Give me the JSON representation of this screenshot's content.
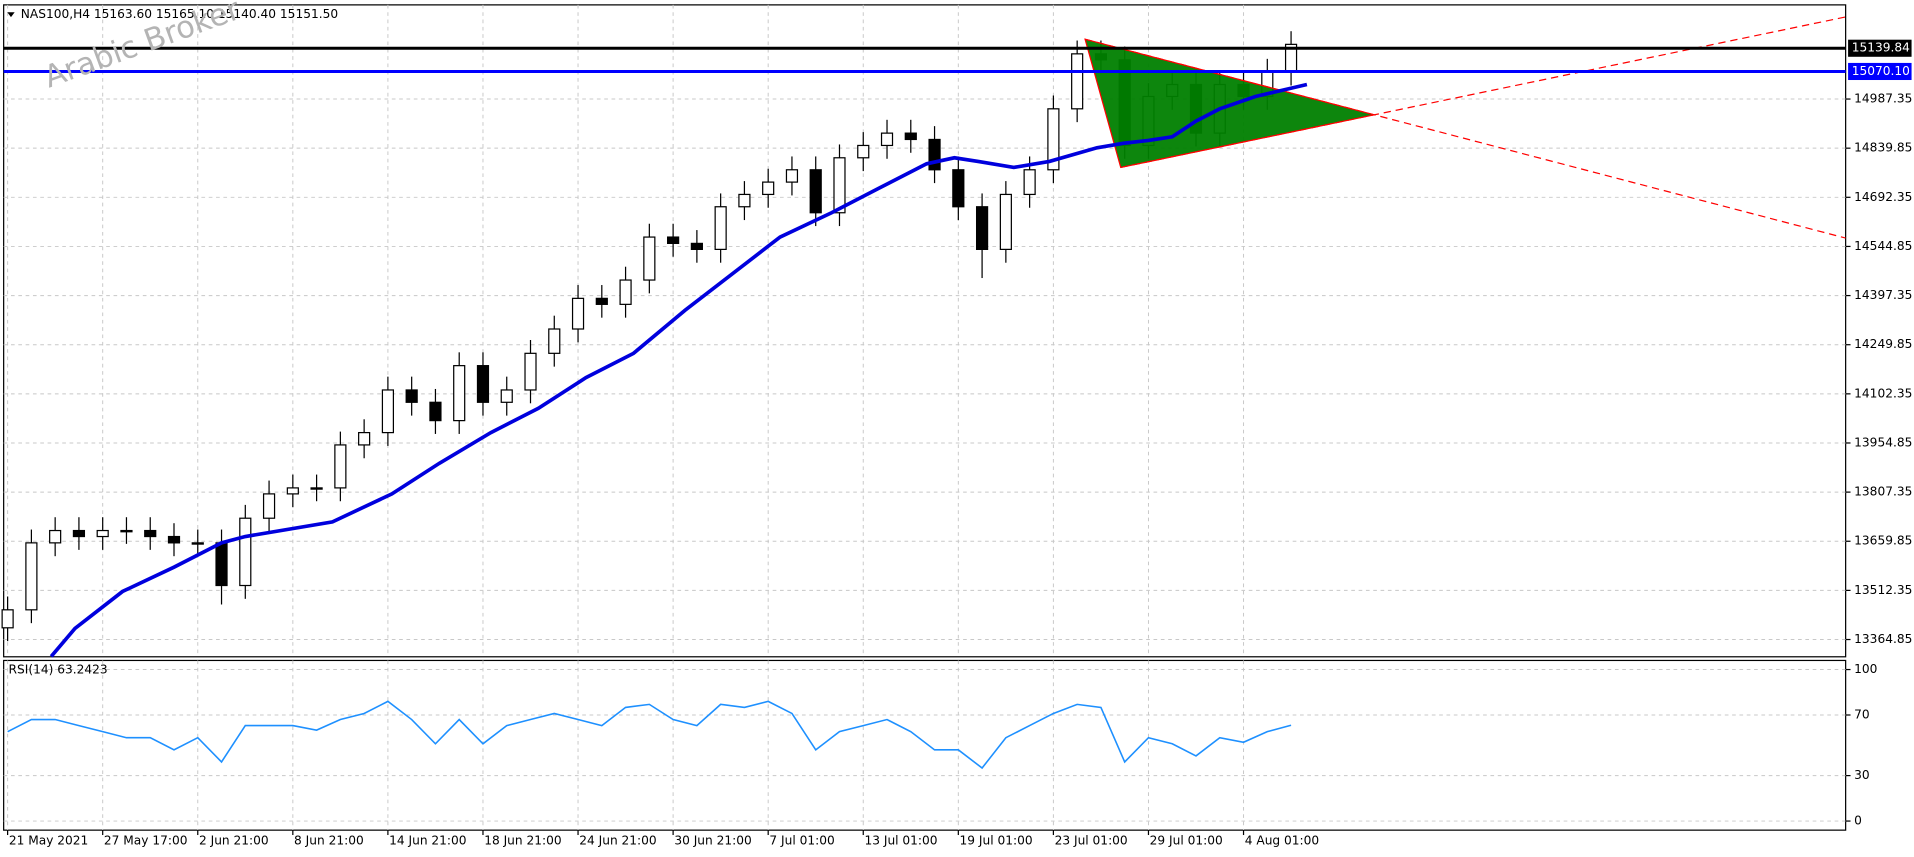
{
  "chart_data": [
    {
      "type": "candlestick",
      "title": "NAS100,H4  15163.60 15165.10 15140.40 15151.50",
      "watermark": "Arabic Broker",
      "x": [
        0,
        6,
        12,
        18,
        24,
        30,
        36,
        42,
        48,
        54,
        60,
        66,
        72,
        78,
        84,
        90,
        96,
        102,
        108,
        114,
        120,
        126,
        132,
        138,
        144,
        150,
        156,
        162,
        168,
        174,
        180,
        186,
        192,
        198,
        204,
        210,
        216,
        222,
        228,
        234,
        240,
        246,
        252,
        258,
        264,
        270,
        276,
        282,
        288,
        294,
        300,
        306,
        312,
        318,
        324
      ],
      "open": [
        13400,
        13454,
        13655,
        13692,
        13674,
        13692,
        13692,
        13674,
        13655,
        13655,
        13527,
        13729,
        13802,
        13820,
        13820,
        13949,
        13986,
        14114,
        14077,
        14022,
        14187,
        14077,
        14114,
        14224,
        14297,
        14389,
        14371,
        14444,
        14573,
        14554,
        14536,
        14664,
        14701,
        14738,
        14775,
        14646,
        14811,
        14848,
        14885,
        14866,
        14775,
        14664,
        14536,
        14701,
        14775,
        14958,
        15123,
        15105,
        14848,
        14995,
        15031,
        14885,
        15031,
        14995,
        15068
      ],
      "high": [
        13494,
        13695,
        13732,
        13732,
        13732,
        13732,
        13732,
        13714,
        13695,
        13695,
        13769,
        13842,
        13860,
        13860,
        13989,
        14026,
        14154,
        14154,
        14117,
        14227,
        14227,
        14154,
        14264,
        14337,
        14429,
        14429,
        14484,
        14613,
        14613,
        14594,
        14704,
        14741,
        14778,
        14815,
        14815,
        14851,
        14888,
        14925,
        14925,
        14906,
        14815,
        14704,
        14741,
        14815,
        14998,
        15163,
        15163,
        15145,
        15035,
        15071,
        15071,
        15071,
        15071,
        15108,
        15191
      ],
      "low": [
        13360,
        13414,
        13615,
        13634,
        13634,
        13652,
        13634,
        13615,
        13615,
        13470,
        13487,
        13689,
        13762,
        13780,
        13780,
        13909,
        13946,
        14037,
        13982,
        13982,
        14037,
        14037,
        14074,
        14184,
        14257,
        14331,
        14331,
        14404,
        14514,
        14496,
        14496,
        14624,
        14661,
        14698,
        14606,
        14606,
        14771,
        14808,
        14826,
        14735,
        14624,
        14450,
        14496,
        14661,
        14735,
        14918,
        15065,
        14808,
        14808,
        14955,
        14845,
        14845,
        14955,
        14955,
        15028
      ],
      "close": [
        13454,
        13655,
        13692,
        13674,
        13692,
        13692,
        13674,
        13655,
        13655,
        13527,
        13729,
        13802,
        13820,
        13820,
        13949,
        13986,
        14114,
        14077,
        14022,
        14187,
        14077,
        14114,
        14224,
        14297,
        14389,
        14371,
        14444,
        14573,
        14554,
        14536,
        14664,
        14701,
        14738,
        14775,
        14646,
        14811,
        14848,
        14885,
        14866,
        14775,
        14664,
        14536,
        14701,
        14775,
        14958,
        15123,
        15105,
        14848,
        14995,
        15031,
        14885,
        15031,
        14995,
        15068,
        15151.5
      ],
      "up_color": "#ffffff",
      "down_color": "#000000",
      "wick_color": "#000000",
      "moving_average": {
        "color": "#0000dd",
        "x": [
          11,
          17,
          29,
          42,
          54,
          60,
          82,
          97,
          109,
          122,
          134,
          146,
          158,
          171,
          183,
          195,
          208,
          220,
          232,
          239,
          245,
          254,
          263,
          275,
          282,
          288,
          294,
          300,
          306,
          315,
          328
        ],
        "values": [
          13314,
          13398,
          13509,
          13582,
          13655,
          13674,
          13718,
          13802,
          13894,
          13986,
          14059,
          14151,
          14224,
          14353,
          14463,
          14573,
          14646,
          14720,
          14793,
          14811,
          14800,
          14782,
          14800,
          14841,
          14855,
          14863,
          14874,
          14921,
          14958,
          14995,
          15031
        ]
      },
      "levels": [
        {
          "value": 15139.84,
          "color": "#000000"
        },
        {
          "value": 15070.1,
          "label": "15070.10",
          "color": "#0000ff"
        }
      ],
      "triangle": {
        "x": [
          272,
          281,
          345
        ],
        "y": [
          15167,
          14782,
          14940
        ],
        "color": "#008000",
        "line_color": "#ff0000"
      },
      "xlim": [
        -1,
        464
      ],
      "xticks": [
        {
          "value": 0,
          "label": "21 May 2021"
        },
        {
          "value": 24,
          "label": "27 May 17:00"
        },
        {
          "value": 48,
          "label": "2 Jun 21:00"
        },
        {
          "value": 72,
          "label": "8 Jun 21:00"
        },
        {
          "value": 96,
          "label": "14 Jun 21:00"
        },
        {
          "value": 120,
          "label": "18 Jun 21:00"
        },
        {
          "value": 144,
          "label": "24 Jun 21:00"
        },
        {
          "value": 168,
          "label": "30 Jun 21:00"
        },
        {
          "value": 192,
          "label": "7 Jul 01:00"
        },
        {
          "value": 216,
          "label": "13 Jul 01:00"
        },
        {
          "value": 240,
          "label": "19 Jul 01:00"
        },
        {
          "value": 264,
          "label": "23 Jul 01:00"
        },
        {
          "value": 288,
          "label": "29 Jul 01:00"
        },
        {
          "value": 312,
          "label": "4 Aug 01:00"
        }
      ],
      "ylim": [
        13313,
        15270
      ],
      "yticks": [
        14987.35,
        14839.85,
        14692.35,
        14544.85,
        14397.35,
        14249.85,
        14102.35,
        13954.85,
        13807.35,
        13659.85,
        13512.35,
        13364.85
      ],
      "grid": true
    },
    {
      "type": "line",
      "title": "RSI(14) 63.2423",
      "color": "#1e90ff",
      "x": [
        0,
        6,
        12,
        18,
        24,
        30,
        36,
        42,
        48,
        54,
        60,
        66,
        72,
        78,
        84,
        90,
        96,
        102,
        108,
        114,
        120,
        126,
        132,
        138,
        144,
        150,
        156,
        162,
        168,
        174,
        180,
        186,
        192,
        198,
        204,
        210,
        216,
        222,
        228,
        234,
        240,
        246,
        252,
        258,
        264,
        270,
        276,
        282,
        288,
        294,
        300,
        306,
        312,
        318,
        324
      ],
      "values": [
        59,
        67,
        67,
        63,
        59,
        55,
        55,
        47,
        55,
        39,
        63,
        63,
        63,
        60,
        67,
        71,
        79,
        67,
        51,
        67,
        51,
        63,
        67,
        71,
        67,
        63,
        75,
        77,
        67,
        63,
        77,
        75,
        79,
        71,
        47,
        59,
        63,
        67,
        59,
        47,
        47,
        35,
        55,
        63,
        71,
        77,
        75,
        39,
        55,
        51,
        43,
        55,
        52,
        59,
        63.2423
      ],
      "ylim": [
        -6,
        106
      ],
      "yticks": [
        0,
        30,
        70,
        100
      ],
      "grid": true
    }
  ]
}
